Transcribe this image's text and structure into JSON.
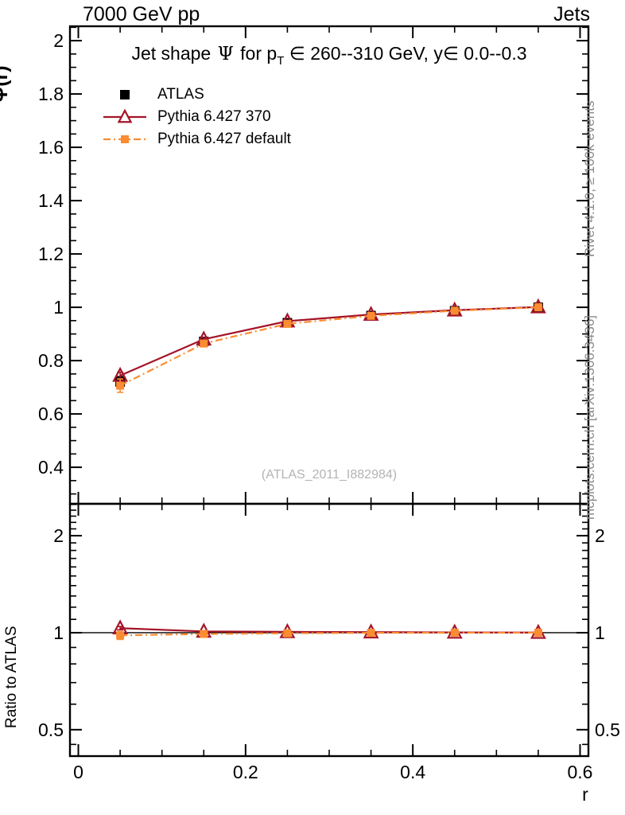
{
  "header": {
    "left": "7000 GeV pp",
    "right": "Jets"
  },
  "title": {
    "pre": "Jet shape ",
    "psi": "Ψ",
    "mid": " for p",
    "sub": "T",
    "post": " ∈ 260--310 GeV, y∈ 0.0--0.3"
  },
  "labels": {
    "ylabel_main": "Ψ(r)",
    "ylabel_ratio": "Ratio to ATLAS",
    "xlabel": "r",
    "watermark": "(ATLAS_2011_I882984)"
  },
  "side_notes": {
    "rivet": "Rivet 4.1.0, ≥ 100k events",
    "mcplots": "mcplots.cern.ch [arXiv:1306.3436]"
  },
  "legend": [
    {
      "label": "ATLAS",
      "marker": "square",
      "line": "none",
      "color": "#000000",
      "size": 12
    },
    {
      "label": "Pythia 6.427 370",
      "marker": "triangle",
      "line": "solid",
      "color": "#a41428",
      "size": 13
    },
    {
      "label": "Pythia 6.427 default",
      "marker": "square",
      "line": "dashdot",
      "color": "#fb8c32",
      "size": 10
    }
  ],
  "colors": {
    "frame": "#000000",
    "red_series": "#a41428",
    "orange_series": "#fb8c32",
    "gray_text": "#8a8a8a"
  },
  "chart_data": {
    "type": "line",
    "title": "Jet shape Ψ for pT ∈ 260--310 GeV, y∈ 0.0--0.3",
    "xlabel": "r",
    "x": [
      0.05,
      0.15,
      0.25,
      0.35,
      0.45,
      0.55
    ],
    "xlim": [
      -0.01,
      0.61
    ],
    "xticks": [
      {
        "v": 0.0,
        "t": "0"
      },
      {
        "v": 0.2,
        "t": "0.2"
      },
      {
        "v": 0.4,
        "t": "0.4"
      },
      {
        "v": 0.6,
        "t": "0.6"
      }
    ],
    "main_panel": {
      "ylabel": "Ψ(r)",
      "yscale": "linear",
      "ylim": [
        0.263,
        2.054
      ],
      "yticks": [
        {
          "v": 0.4,
          "t": "0.4"
        },
        {
          "v": 0.6,
          "t": "0.6"
        },
        {
          "v": 0.8,
          "t": "0.8"
        },
        {
          "v": 1.0,
          "t": "1"
        },
        {
          "v": 1.2,
          "t": "1.2"
        },
        {
          "v": 1.4,
          "t": "1.4"
        },
        {
          "v": 1.6,
          "t": "1.6"
        },
        {
          "v": 1.8,
          "t": "1.8"
        },
        {
          "v": 2.0,
          "t": "2"
        }
      ],
      "series": [
        {
          "name": "ATLAS",
          "color": "#000000",
          "marker": "square",
          "msize": 12,
          "line": "none",
          "values": [
            0.72,
            0.872,
            0.942,
            0.969,
            0.987,
            1.0
          ],
          "errors": [
            0.02,
            0.01,
            0.007,
            0.005,
            0.004,
            0.003
          ]
        },
        {
          "name": "Pythia 6.427 370",
          "color": "#a41428",
          "marker": "triangle",
          "msize": 14,
          "line": "solid",
          "values": [
            0.744,
            0.88,
            0.948,
            0.973,
            0.989,
            1.001
          ],
          "errors": [
            0.012,
            0.006,
            0.004,
            0.003,
            0.002,
            0.002
          ]
        },
        {
          "name": "Pythia 6.427 default",
          "color": "#fb8c32",
          "marker": "square",
          "msize": 10,
          "line": "dashdot",
          "values": [
            0.706,
            0.864,
            0.938,
            0.968,
            0.987,
            1.0
          ],
          "errors": [
            0.025,
            0.008,
            0.005,
            0.004,
            0.003,
            0.002
          ]
        }
      ]
    },
    "ratio_panel": {
      "ylabel": "Ratio to ATLAS",
      "yscale": "log",
      "ylim": [
        0.414,
        2.512
      ],
      "reference_line": 1.0,
      "yticks": [
        {
          "v": 0.5,
          "t": "0.5"
        },
        {
          "v": 1.0,
          "t": "1"
        },
        {
          "v": 2.0,
          "t": "2"
        }
      ],
      "series": [
        {
          "name": "Pythia 6.427 370",
          "color": "#a41428",
          "marker": "triangle",
          "msize": 14,
          "line": "solid",
          "values": [
            1.033,
            1.009,
            1.006,
            1.004,
            1.002,
            1.001
          ],
          "errors": [
            0.012,
            0.005,
            0.004,
            0.003,
            0.003,
            0.002
          ]
        },
        {
          "name": "Pythia 6.427 default",
          "color": "#fb8c32",
          "marker": "square",
          "msize": 10,
          "line": "dashdot",
          "values": [
            0.981,
            0.991,
            0.996,
            0.999,
            1.0,
            1.0
          ],
          "errors": [
            0.028,
            0.009,
            0.006,
            0.004,
            0.003,
            0.002
          ]
        }
      ]
    }
  }
}
